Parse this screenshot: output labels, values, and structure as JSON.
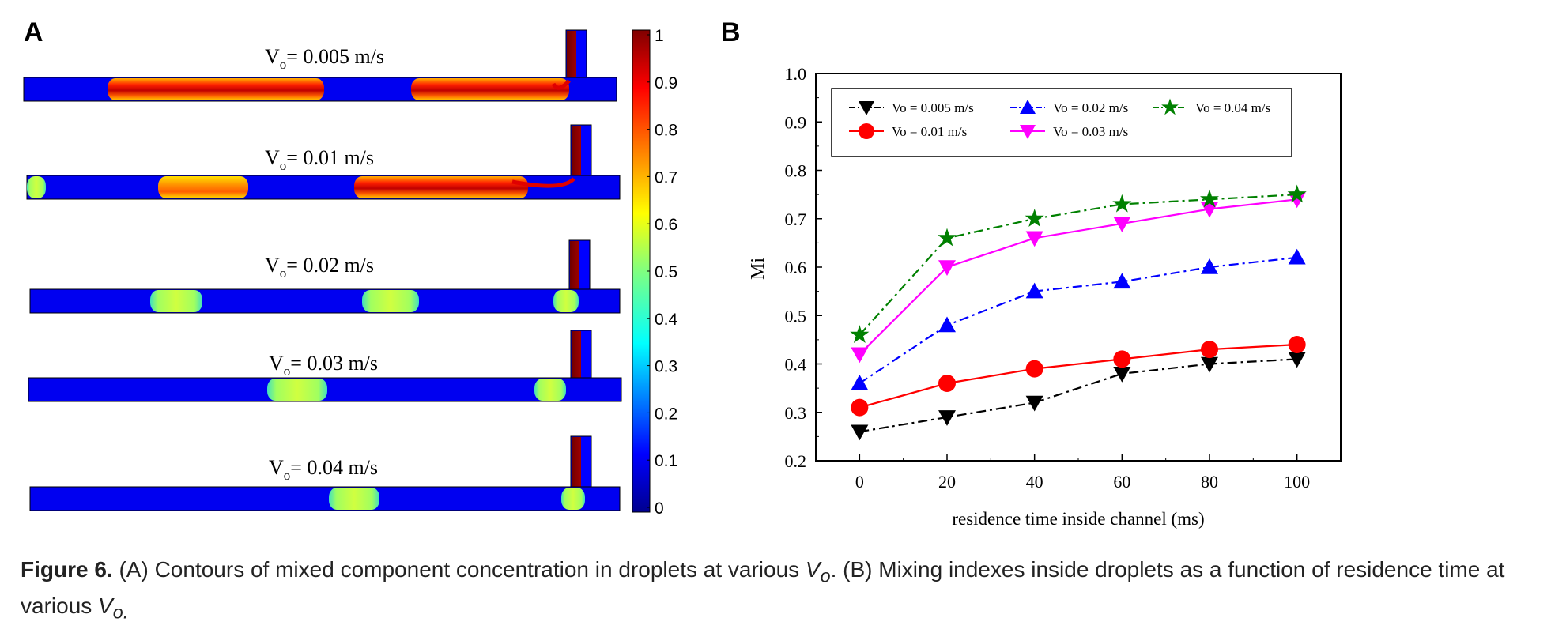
{
  "panel_a": {
    "letter": "A",
    "rows": [
      {
        "label": "= 0.005 m/s"
      },
      {
        "label": "= 0.01 m/s"
      },
      {
        "label": "= 0.02 m/s"
      },
      {
        "label": "= 0.03 m/s"
      },
      {
        "label": "= 0.04 m/s"
      }
    ],
    "label_prefix": "V",
    "label_sub": "o",
    "colorbar_ticks": [
      "1",
      "0.9",
      "0.8",
      "0.7",
      "0.6",
      "0.5",
      "0.4",
      "0.3",
      "0.2",
      "0.1",
      "0"
    ],
    "colormap": [
      "#00008f",
      "#0000ff",
      "#0080ff",
      "#00ffff",
      "#80ff80",
      "#ffff00",
      "#ff8000",
      "#ff0000",
      "#800000"
    ]
  },
  "panel_b": {
    "letter": "B"
  },
  "chart_data": {
    "type": "line",
    "xlabel": "residence time inside channel (ms)",
    "ylabel": "Mi",
    "x": [
      0,
      20,
      40,
      60,
      80,
      100
    ],
    "xlim": [
      -10,
      110
    ],
    "ylim": [
      0.2,
      1.0
    ],
    "x_ticks": [
      "0",
      "20",
      "40",
      "60",
      "80",
      "100"
    ],
    "y_ticks": [
      "0.2",
      "0.3",
      "0.4",
      "0.5",
      "0.6",
      "0.7",
      "0.8",
      "0.9",
      "1.0"
    ],
    "legend_position": "top-left",
    "series": [
      {
        "name": "Vo = 0.005 m/s",
        "color": "#000000",
        "marker": "triangle-down",
        "dash": "dashdot",
        "values": [
          0.26,
          0.29,
          0.32,
          0.38,
          0.4,
          0.41
        ]
      },
      {
        "name": "Vo = 0.01 m/s",
        "color": "#ff0000",
        "marker": "circle",
        "dash": "solid",
        "values": [
          0.31,
          0.36,
          0.39,
          0.41,
          0.43,
          0.44
        ]
      },
      {
        "name": "Vo = 0.02 m/s",
        "color": "#0000ff",
        "marker": "triangle-up",
        "dash": "dashdot",
        "values": [
          0.36,
          0.48,
          0.55,
          0.57,
          0.6,
          0.62
        ]
      },
      {
        "name": "Vo = 0.03 m/s",
        "color": "#ff00ff",
        "marker": "triangle-down",
        "dash": "solid",
        "values": [
          0.42,
          0.6,
          0.66,
          0.69,
          0.72,
          0.74
        ]
      },
      {
        "name": "Vo = 0.04 m/s",
        "color": "#008000",
        "marker": "star",
        "dash": "dashdot",
        "values": [
          0.46,
          0.66,
          0.7,
          0.73,
          0.74,
          0.75
        ]
      }
    ]
  },
  "caption": {
    "figure_label": "Figure 6.",
    "text_1": " (A) Contours of mixed component concentration in droplets at various ",
    "vo_1": "V",
    "vo_1_sub": "o",
    "text_2": ". (B) Mixing indexes inside droplets as a function of residence time at various ",
    "vo_2": "V",
    "vo_2_sub": "o."
  }
}
